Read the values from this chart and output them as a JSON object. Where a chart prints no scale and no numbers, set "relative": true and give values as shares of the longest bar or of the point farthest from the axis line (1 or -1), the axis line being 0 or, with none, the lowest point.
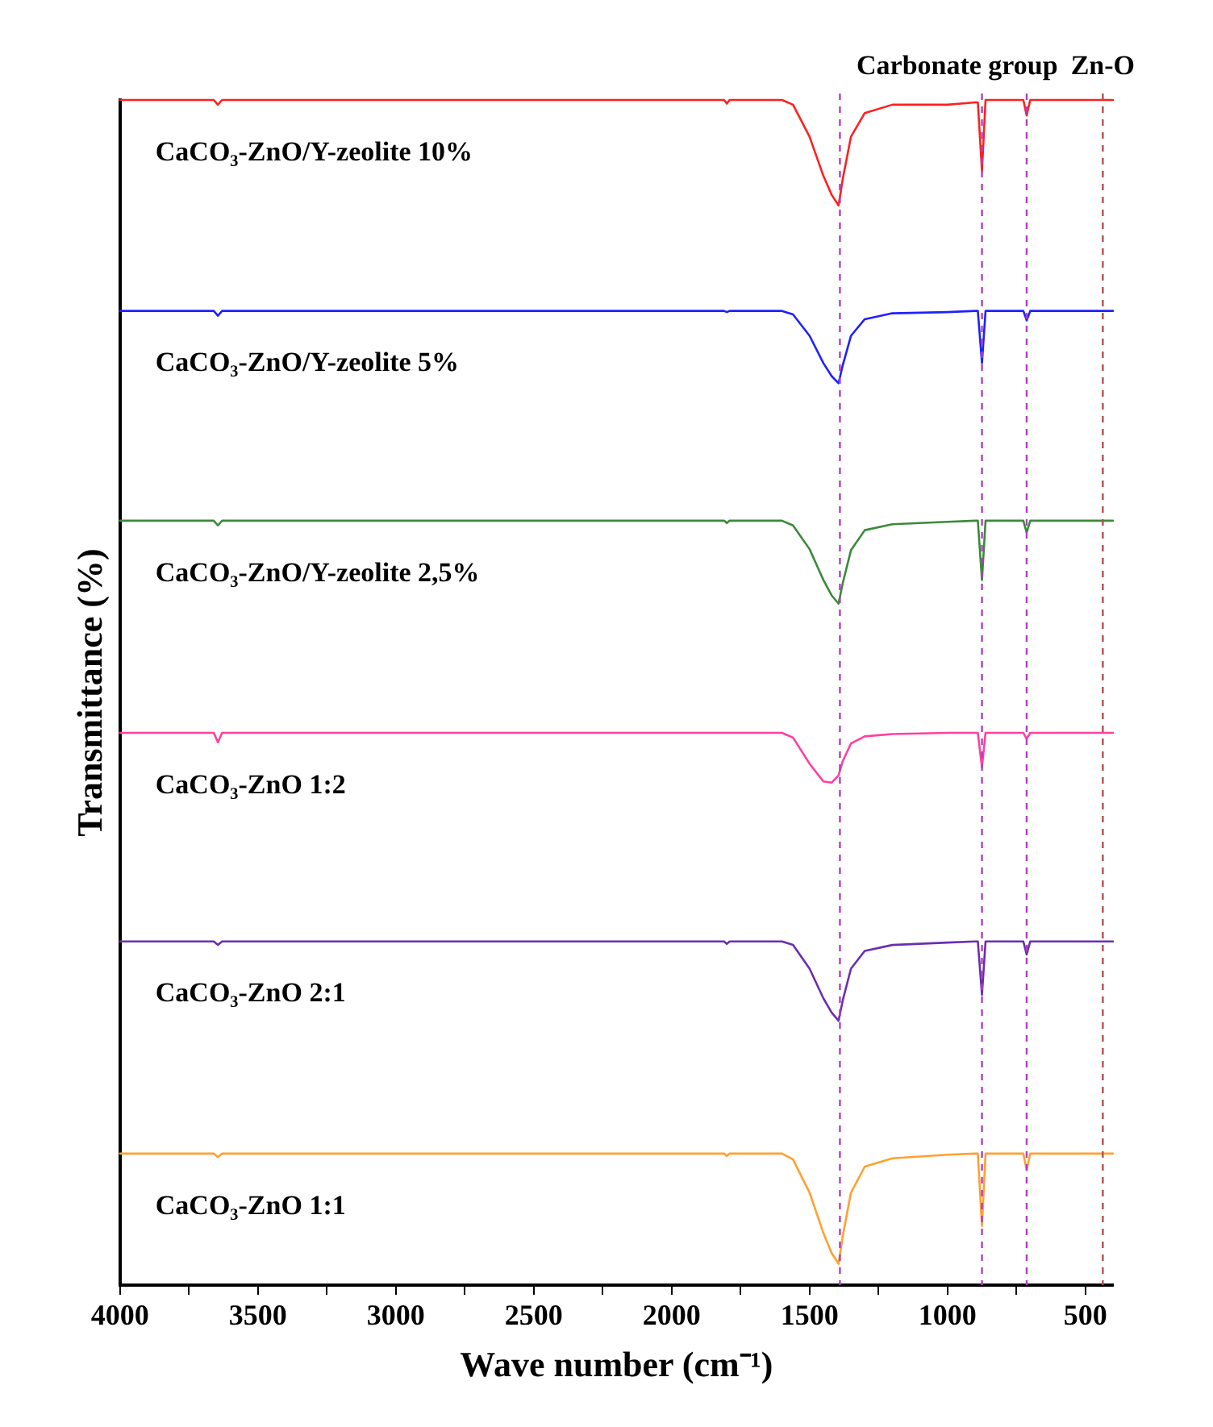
{
  "chart_data": {
    "type": "line",
    "relative": true,
    "xlabel": "Wave number (cm⁻¹)",
    "ylabel": "Transmittance (%)",
    "x": [
      4000,
      3660,
      3645,
      3630,
      2000,
      1810,
      1800,
      1790,
      1600,
      1560,
      1500,
      1450,
      1420,
      1395,
      1380,
      1350,
      1300,
      1200,
      1000,
      900,
      890,
      875,
      862,
      850,
      725,
      713,
      700,
      400
    ],
    "xlim": [
      4000,
      400
    ],
    "xticks": [
      4000,
      {
        "value": 3750,
        "label": null
      },
      3500,
      {
        "value": 3250,
        "label": null
      },
      3000,
      {
        "value": 2750,
        "label": null
      },
      2500,
      {
        "value": 2250,
        "label": null
      },
      2000,
      {
        "value": 1750,
        "label": null
      },
      1500,
      {
        "value": 1250,
        "label": null
      },
      1000,
      {
        "value": 750,
        "label": null
      },
      500
    ],
    "series": [
      {
        "name": "CaCO₃-ZnO/Y-zeolite 10%",
        "color": "#ff2020",
        "values": [
          1,
          1,
          0.996,
          1,
          1,
          1,
          0.997,
          1,
          1,
          0.996,
          0.969,
          0.936,
          0.92,
          0.911,
          0.933,
          0.969,
          0.989,
          0.996,
          0.996,
          0.998,
          0.998,
          0.94,
          1,
          1,
          1,
          0.987,
          1,
          1
        ]
      },
      {
        "name": "CaCO₃-ZnO/Y-zeolite 5%",
        "color": "#2020ff",
        "values": [
          0.822,
          0.822,
          0.818,
          0.822,
          0.822,
          0.822,
          0.821,
          0.822,
          0.822,
          0.819,
          0.801,
          0.778,
          0.767,
          0.761,
          0.776,
          0.801,
          0.815,
          0.82,
          0.821,
          0.822,
          0.822,
          0.778,
          0.822,
          0.822,
          0.822,
          0.814,
          0.822,
          0.822
        ]
      },
      {
        "name": "CaCO₃-ZnO/Y-zeolite 2,5%",
        "color": "#3a8a3a",
        "values": [
          0.645,
          0.645,
          0.641,
          0.645,
          0.645,
          0.645,
          0.643,
          0.645,
          0.645,
          0.641,
          0.621,
          0.595,
          0.582,
          0.575,
          0.592,
          0.62,
          0.637,
          0.642,
          0.644,
          0.645,
          0.645,
          0.595,
          0.645,
          0.645,
          0.645,
          0.635,
          0.645,
          0.645
        ]
      },
      {
        "name": "CaCO₃-ZnO 1:2",
        "color": "#ff3fa0",
        "values": [
          0.466,
          0.466,
          0.458,
          0.466,
          0.466,
          0.466,
          0.466,
          0.466,
          0.466,
          0.462,
          0.44,
          0.425,
          0.424,
          0.43,
          0.442,
          0.457,
          0.463,
          0.465,
          0.466,
          0.466,
          0.466,
          0.437,
          0.466,
          0.466,
          0.466,
          0.461,
          0.466,
          0.466
        ]
      },
      {
        "name": "CaCO₃-ZnO 2:1",
        "color": "#6a2fb0",
        "values": [
          0.29,
          0.29,
          0.287,
          0.29,
          0.29,
          0.29,
          0.288,
          0.29,
          0.29,
          0.287,
          0.267,
          0.242,
          0.23,
          0.223,
          0.24,
          0.267,
          0.282,
          0.287,
          0.289,
          0.29,
          0.29,
          0.245,
          0.29,
          0.29,
          0.29,
          0.279,
          0.29,
          0.29
        ]
      },
      {
        "name": "CaCO₃-ZnO 1:1",
        "color": "#ffa030",
        "values": [
          0.111,
          0.111,
          0.108,
          0.111,
          0.111,
          0.111,
          0.109,
          0.111,
          0.111,
          0.106,
          0.078,
          0.044,
          0.027,
          0.018,
          0.041,
          0.078,
          0.1,
          0.107,
          0.11,
          0.111,
          0.111,
          0.05,
          0.111,
          0.111,
          0.111,
          0.097,
          0.111,
          0.111
        ]
      }
    ],
    "ref_lines": [
      {
        "axis": "x",
        "value": 1390,
        "label": null,
        "color": "#b040c0",
        "line_style": "dashed"
      },
      {
        "axis": "x",
        "value": 875,
        "label": "Carbonate group",
        "color": "#b040c0",
        "line_style": "dashed"
      },
      {
        "axis": "x",
        "value": 713,
        "label": null,
        "color": "#b040c0",
        "line_style": "dashed"
      },
      {
        "axis": "x",
        "value": 437,
        "label": "Zn-O",
        "color": "#b05050",
        "line_style": "dashed"
      }
    ],
    "grid": false,
    "legend": false,
    "marker": "none",
    "line_style": "solid"
  }
}
